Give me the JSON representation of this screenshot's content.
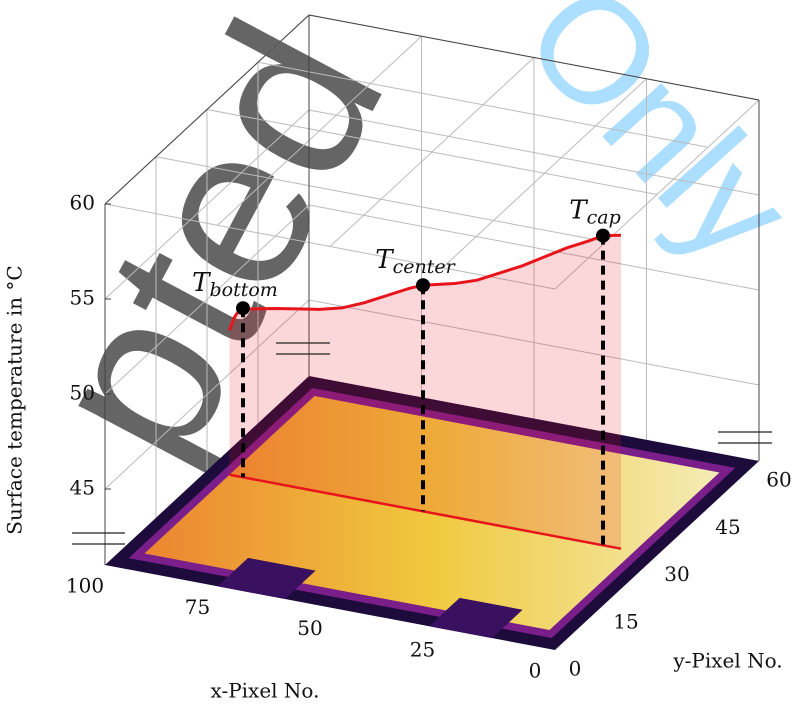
{
  "chart_data": {
    "type": "line3d",
    "xlabel": "x-Pixel No.",
    "ylabel": "y-Pixel No.",
    "zlabel": "Surface temperature in °C",
    "xlim": [
      0,
      100
    ],
    "ylim": [
      0,
      60
    ],
    "zlim": [
      41,
      60
    ],
    "xticks": [
      0,
      25,
      50,
      75,
      100
    ],
    "yticks": [
      0,
      15,
      30,
      45,
      60
    ],
    "zticks": [
      45,
      50,
      55,
      60
    ],
    "grid": true,
    "y_position": 30,
    "x": [
      95,
      94,
      93,
      91,
      85,
      80,
      75,
      70,
      65,
      60,
      55,
      52,
      45,
      40,
      35,
      30,
      25,
      20,
      15,
      12,
      8
    ],
    "values": [
      48.6,
      49.3,
      49.7,
      49.9,
      50.2,
      50.4,
      50.6,
      50.9,
      51.4,
      52.0,
      52.6,
      52.9,
      53.3,
      53.7,
      54.3,
      54.9,
      55.6,
      56.3,
      56.9,
      57.3,
      57.5
    ],
    "color": "#e8141b",
    "annotations": [
      {
        "text": "T",
        "subscript": "bottom",
        "x": 92,
        "z": 49.9
      },
      {
        "text": "T",
        "subscript": "center",
        "x": 52,
        "z": 52.9
      },
      {
        "text": "T",
        "subscript": "cap",
        "x": 12,
        "z": 57.3
      }
    ],
    "watermark": [
      "pted",
      "Only"
    ]
  }
}
